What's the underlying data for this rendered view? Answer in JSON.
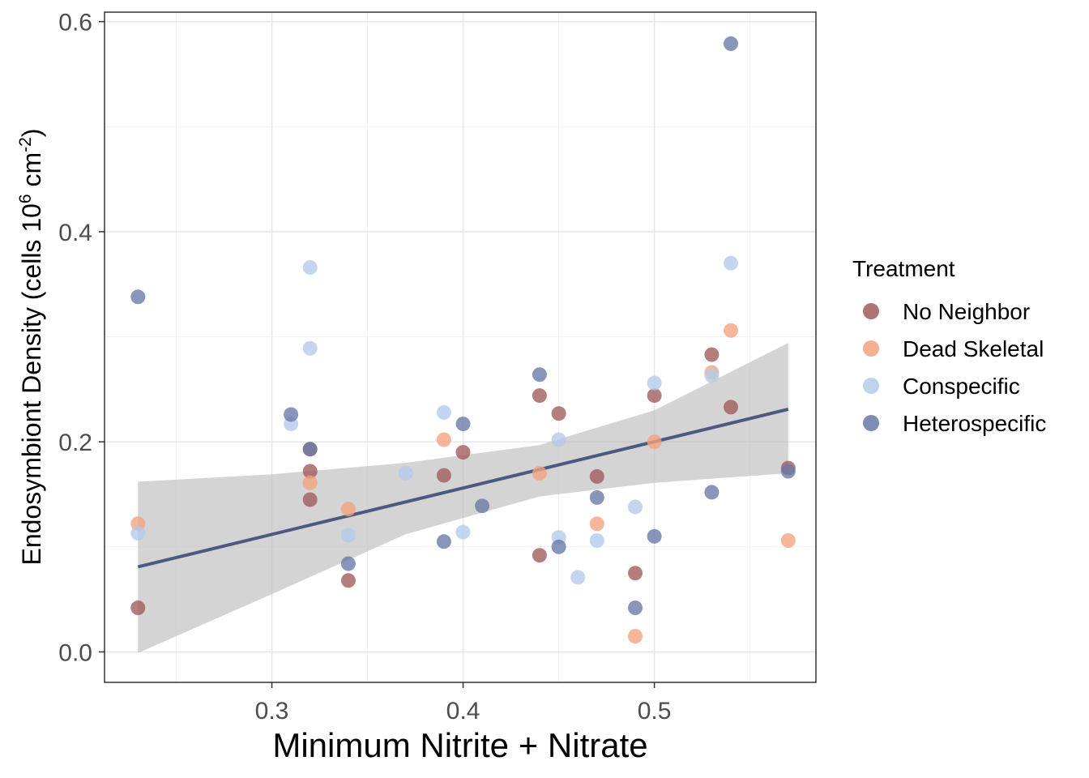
{
  "chart_data": {
    "type": "scatter",
    "xlabel": "Minimum Nitrite + Nitrate",
    "ylabel": {
      "prefix": "Endosymbiont Density (cells 10",
      "sup1": "6",
      "mid": " cm",
      "sup2": "-2",
      "suffix": ")"
    },
    "xlim": [
      0.2125,
      0.5845
    ],
    "ylim": [
      -0.029,
      0.609
    ],
    "x_ticks": [
      0.3,
      0.4,
      0.5
    ],
    "x_tick_labels": [
      "0.3",
      "0.4",
      "0.5"
    ],
    "y_ticks": [
      0.0,
      0.2,
      0.4,
      0.6
    ],
    "y_tick_labels": [
      "0.0",
      "0.2",
      "0.4",
      "0.6"
    ],
    "grid": true,
    "legend": {
      "title": "Treatment",
      "position": "right"
    },
    "series": [
      {
        "name": "No Neighbor",
        "color": "#a05a5a",
        "points": [
          [
            0.23,
            0.042
          ],
          [
            0.32,
            0.193
          ],
          [
            0.32,
            0.172
          ],
          [
            0.32,
            0.145
          ],
          [
            0.34,
            0.068
          ],
          [
            0.39,
            0.168
          ],
          [
            0.4,
            0.19
          ],
          [
            0.44,
            0.244
          ],
          [
            0.44,
            0.092
          ],
          [
            0.45,
            0.227
          ],
          [
            0.47,
            0.167
          ],
          [
            0.49,
            0.075
          ],
          [
            0.5,
            0.244
          ],
          [
            0.53,
            0.283
          ],
          [
            0.54,
            0.233
          ],
          [
            0.57,
            0.175
          ]
        ]
      },
      {
        "name": "Dead Skeletal",
        "color": "#f2a27e",
        "points": [
          [
            0.23,
            0.122
          ],
          [
            0.32,
            0.161
          ],
          [
            0.34,
            0.136
          ],
          [
            0.39,
            0.202
          ],
          [
            0.44,
            0.17
          ],
          [
            0.47,
            0.122
          ],
          [
            0.49,
            0.015
          ],
          [
            0.5,
            0.2
          ],
          [
            0.53,
            0.266
          ],
          [
            0.54,
            0.306
          ],
          [
            0.57,
            0.106
          ]
        ]
      },
      {
        "name": "Conspecific",
        "color": "#b4cbea",
        "points": [
          [
            0.23,
            0.113
          ],
          [
            0.31,
            0.217
          ],
          [
            0.32,
            0.366
          ],
          [
            0.32,
            0.289
          ],
          [
            0.34,
            0.111
          ],
          [
            0.37,
            0.17
          ],
          [
            0.39,
            0.228
          ],
          [
            0.4,
            0.114
          ],
          [
            0.45,
            0.202
          ],
          [
            0.45,
            0.109
          ],
          [
            0.46,
            0.071
          ],
          [
            0.47,
            0.106
          ],
          [
            0.49,
            0.138
          ],
          [
            0.5,
            0.256
          ],
          [
            0.53,
            0.263
          ],
          [
            0.54,
            0.37
          ]
        ]
      },
      {
        "name": "Heterospecific",
        "color": "#6878a6",
        "points": [
          [
            0.23,
            0.338
          ],
          [
            0.31,
            0.226
          ],
          [
            0.32,
            0.193
          ],
          [
            0.34,
            0.084
          ],
          [
            0.39,
            0.105
          ],
          [
            0.4,
            0.217
          ],
          [
            0.41,
            0.139
          ],
          [
            0.44,
            0.264
          ],
          [
            0.45,
            0.1
          ],
          [
            0.47,
            0.147
          ],
          [
            0.49,
            0.042
          ],
          [
            0.5,
            0.11
          ],
          [
            0.53,
            0.152
          ],
          [
            0.54,
            0.579
          ],
          [
            0.57,
            0.172
          ]
        ]
      }
    ],
    "trend_line": {
      "color": "#4d5a80",
      "x": [
        0.23,
        0.57
      ],
      "y": [
        0.081,
        0.231
      ]
    },
    "confidence_band": {
      "color": "#bdbdbd",
      "x": [
        0.23,
        0.3,
        0.37,
        0.44,
        0.5,
        0.57
      ],
      "upper": [
        0.162,
        0.169,
        0.18,
        0.197,
        0.23,
        0.294
      ],
      "lower": [
        -0.001,
        0.055,
        0.112,
        0.148,
        0.161,
        0.17
      ]
    }
  }
}
